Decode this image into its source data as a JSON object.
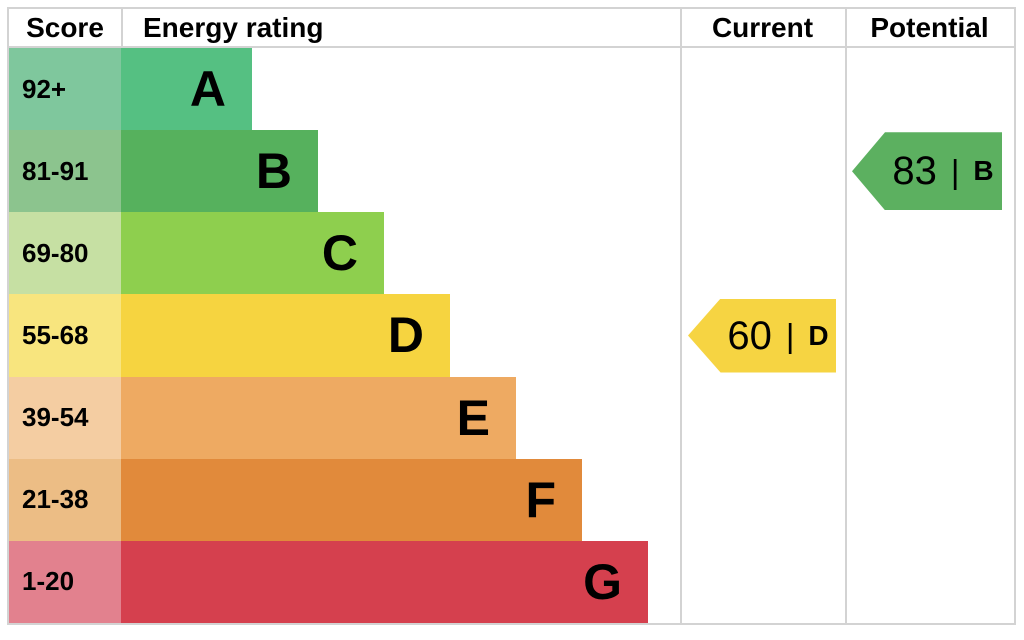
{
  "chart_data": {
    "type": "bar",
    "variant": "epc-energy-rating",
    "columns": [
      "Score",
      "Energy rating",
      "Current",
      "Potential"
    ],
    "bands": [
      {
        "score": "92+",
        "letter": "A",
        "bar_color": "#55c082",
        "score_color": "#7fc79d"
      },
      {
        "score": "81-91",
        "letter": "B",
        "bar_color": "#56b15d",
        "score_color": "#8cc48e"
      },
      {
        "score": "69-80",
        "letter": "C",
        "bar_color": "#8ecf4e",
        "score_color": "#c6e0a3"
      },
      {
        "score": "55-68",
        "letter": "D",
        "bar_color": "#f6d440",
        "score_color": "#f8e57e"
      },
      {
        "score": "39-54",
        "letter": "E",
        "bar_color": "#eeaa62",
        "score_color": "#f4cda2"
      },
      {
        "score": "21-38",
        "letter": "F",
        "bar_color": "#e18a3b",
        "score_color": "#ecbd85"
      },
      {
        "score": "1-20",
        "letter": "G",
        "bar_color": "#d5404e",
        "score_color": "#e2818e"
      }
    ],
    "current": {
      "value": "60",
      "separator": "|",
      "band": "D",
      "color": "#f6d442"
    },
    "potential": {
      "value": "83",
      "separator": "|",
      "band": "B",
      "color": "#5cb060"
    },
    "layout": {
      "legend": "none",
      "grid": "table-borders"
    }
  }
}
